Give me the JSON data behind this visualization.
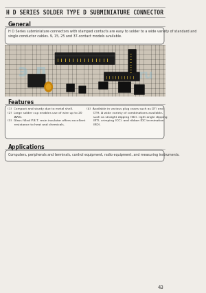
{
  "title": "H D SERIES SOLDER TYPE D SUBMINIATURE CONNECTOR",
  "page_bg": "#f0ede8",
  "general_heading": "General",
  "general_text": "H D Series subminiature connectors with stamped contacts are easy to solder to a wide variety of standard and\nsingle conductor cables. 9, 15, 25 and 37-contact models available.",
  "features_heading": "Features",
  "features_left_1": "(1)  Compact and sturdy due to metal shell.",
  "features_left_2": "(2)  Large solder cup enables use of wire up to 20\n       AWG.",
  "features_left_3": "(3)  Glass filled P.B.T. resin insulator offers excellent\n       resistance to heat and chemicals.",
  "features_right": "(4)  Available in various plug cases such as DT/ and\n       CTH. A wide variety of combinations available,\n       such as straight dipping (SD), right angle dipping\n       (RT), crimping (CC), and ribbon IDC termination\n       (RD).",
  "applications_heading": "Applications",
  "applications_text": "Computers, peripherals and terminals, control equipment, radio equipment, and measuring instruments.",
  "page_number": "43",
  "watermark_el": "э л",
  "watermark_ru": "ru",
  "title_line_color": "#888888",
  "section_line_color": "#888888",
  "box_face": "#f8f6f2",
  "box_edge": "#777777",
  "text_color": "#222222",
  "body_color": "#333333",
  "photo_bg": "#c8c4bc",
  "grid_color": "#999990",
  "wm_color": "#8bbfd4"
}
